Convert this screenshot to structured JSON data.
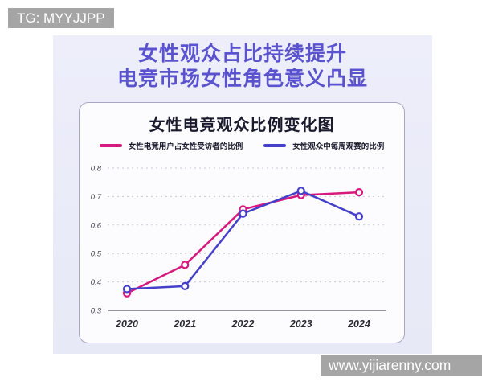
{
  "badges": {
    "tg": "TG: MYYJJPP",
    "watermark": "www.yijiarenny.com"
  },
  "header": {
    "title_line1": "女性观众占比持续提升",
    "title_line2": "电竞市场女性角色意义凸显"
  },
  "chart_data": {
    "type": "line",
    "title": "女性电竞观众比例变化图",
    "categories": [
      "2020",
      "2021",
      "2022",
      "2023",
      "2024"
    ],
    "series": [
      {
        "name": "女性电竞用户占女性受访者的比例",
        "color": "#d6197d",
        "values": [
          0.36,
          0.46,
          0.655,
          0.705,
          0.715
        ]
      },
      {
        "name": "女性观众中每周观赛的比例",
        "color": "#4540c9",
        "values": [
          0.375,
          0.385,
          0.64,
          0.72,
          0.63
        ]
      }
    ],
    "ylim": [
      0.3,
      0.8
    ],
    "yticks": [
      0.3,
      0.4,
      0.5,
      0.6,
      0.7,
      0.8
    ],
    "grid": "dashed horizontal",
    "legend_position": "top",
    "marker": "open-circle"
  },
  "colors": {
    "accent_purple": "#5a53cd",
    "pink_series": "#d6197d",
    "blue_series": "#4540c9",
    "panel_bg": "#e9ebf7",
    "badge_bg": "#a5a5a5",
    "gridline": "#c9c9d8"
  }
}
